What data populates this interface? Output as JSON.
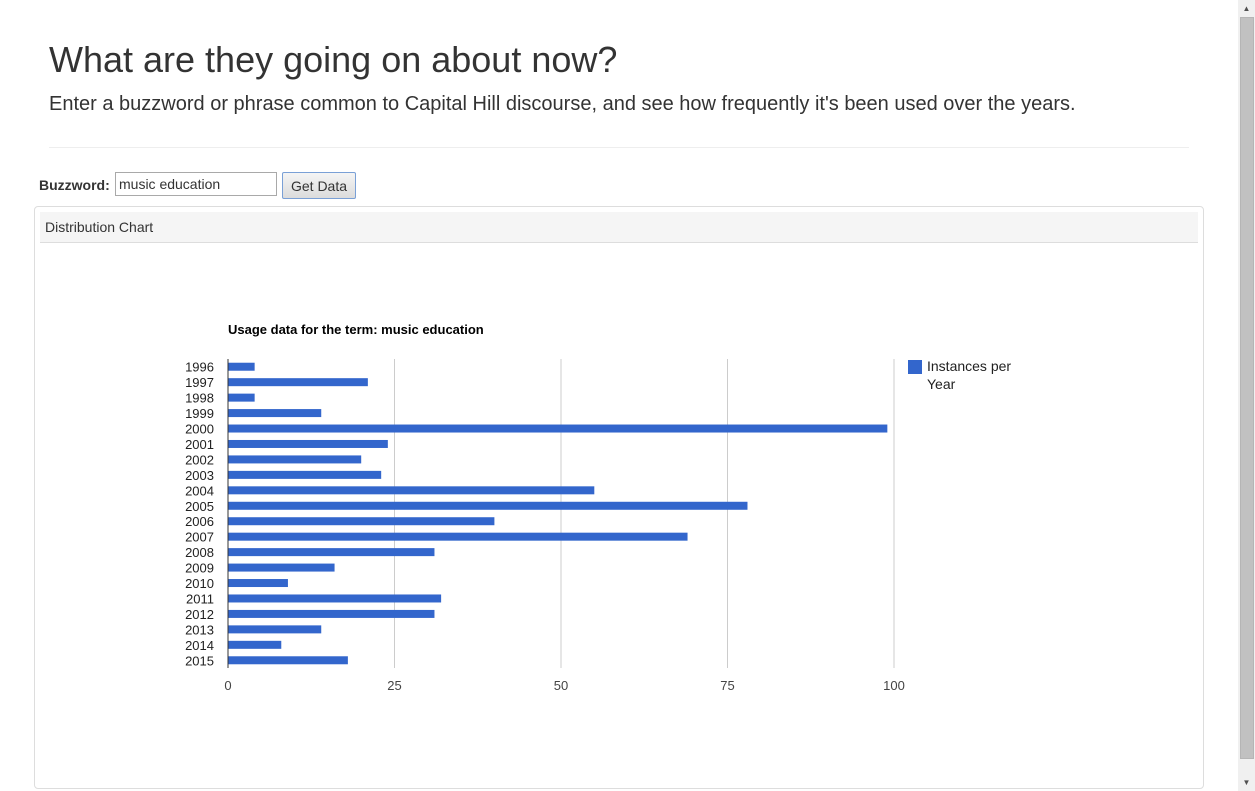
{
  "header": {
    "title": "What are they going on about now?",
    "subtitle": "Enter a buzzword or phrase common to Capital Hill discourse, and see how frequently it's been used over the years."
  },
  "form": {
    "label": "Buzzword:",
    "input_value": "music education",
    "button_label": "Get Data"
  },
  "panel": {
    "heading": "Distribution Chart"
  },
  "chart_data": {
    "type": "bar",
    "orientation": "horizontal",
    "title": "Usage data for the term: music education",
    "categories": [
      "1996",
      "1997",
      "1998",
      "1999",
      "2000",
      "2001",
      "2002",
      "2003",
      "2004",
      "2005",
      "2006",
      "2007",
      "2008",
      "2009",
      "2010",
      "2011",
      "2012",
      "2013",
      "2014",
      "2015"
    ],
    "series": [
      {
        "name": "Instances per Year",
        "color": "#3366cc",
        "values": [
          4,
          21,
          4,
          14,
          99,
          24,
          20,
          23,
          55,
          78,
          40,
          69,
          31,
          16,
          9,
          32,
          31,
          14,
          8,
          18
        ]
      }
    ],
    "xlim": [
      0,
      100
    ],
    "xticks": [
      "0",
      "25",
      "50",
      "75",
      "100"
    ],
    "legend": {
      "position": "right",
      "lines": [
        "Instances per",
        "Year"
      ]
    },
    "grid": true,
    "gridline_color": "#cccccc"
  }
}
